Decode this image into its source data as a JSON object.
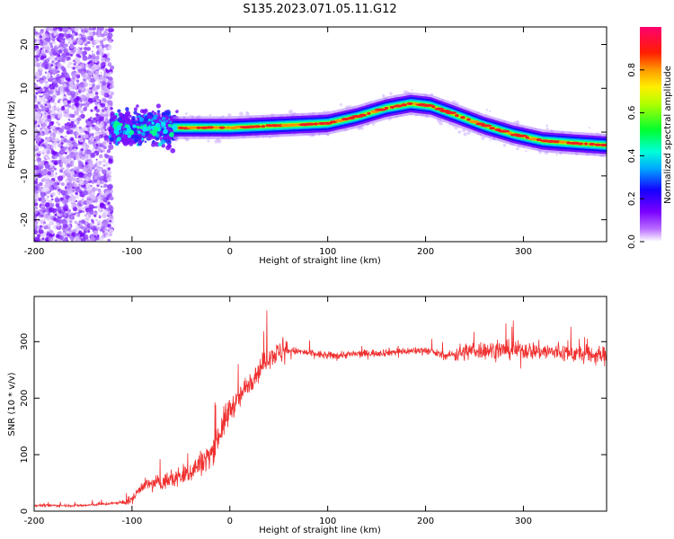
{
  "title": "S135.2023.071.05.11.G12",
  "chart_data": [
    {
      "type": "heatmap",
      "xlabel": "Height of straight line (km)",
      "ylabel": "Frequency (Hz)",
      "xlim": [
        -200,
        385
      ],
      "ylim": [
        -25,
        24
      ],
      "xticks": [
        -200,
        -100,
        0,
        100,
        200,
        300
      ],
      "yticks": [
        -20,
        -10,
        0,
        10,
        20
      ],
      "colorbar": {
        "label": "Normalized spectral amplitude",
        "range": [
          0,
          1
        ],
        "ticks": [
          0.0,
          0.2,
          0.4,
          0.6,
          0.8
        ]
      },
      "ridge": {
        "x": [
          -120,
          -100,
          -80,
          -60,
          -50,
          0,
          50,
          100,
          130,
          160,
          185,
          205,
          230,
          260,
          290,
          320,
          350,
          385
        ],
        "freq": [
          1,
          2,
          -1,
          1,
          1,
          1,
          1.5,
          2,
          3.5,
          5.5,
          6.5,
          6,
          4,
          1.5,
          -0.5,
          -2,
          -2.5,
          -3
        ]
      }
    },
    {
      "type": "line",
      "xlabel": "Height of straight line (km)",
      "ylabel": "SNR (10 * v/v)",
      "xlim": [
        -200,
        385
      ],
      "ylim": [
        0,
        380
      ],
      "xticks": [
        -200,
        -100,
        0,
        100,
        200,
        300
      ],
      "yticks": [
        0,
        100,
        200,
        300
      ],
      "color": "#f03030",
      "trend": {
        "x": [
          -200,
          -150,
          -110,
          -100,
          -90,
          -60,
          -40,
          -20,
          0,
          10,
          20,
          30,
          40,
          60,
          80,
          100,
          150,
          200,
          220,
          250,
          300,
          385
        ],
        "snr": [
          10,
          10,
          15,
          20,
          45,
          55,
          70,
          100,
          180,
          200,
          230,
          250,
          275,
          285,
          280,
          275,
          280,
          285,
          275,
          285,
          285,
          275
        ]
      }
    }
  ]
}
